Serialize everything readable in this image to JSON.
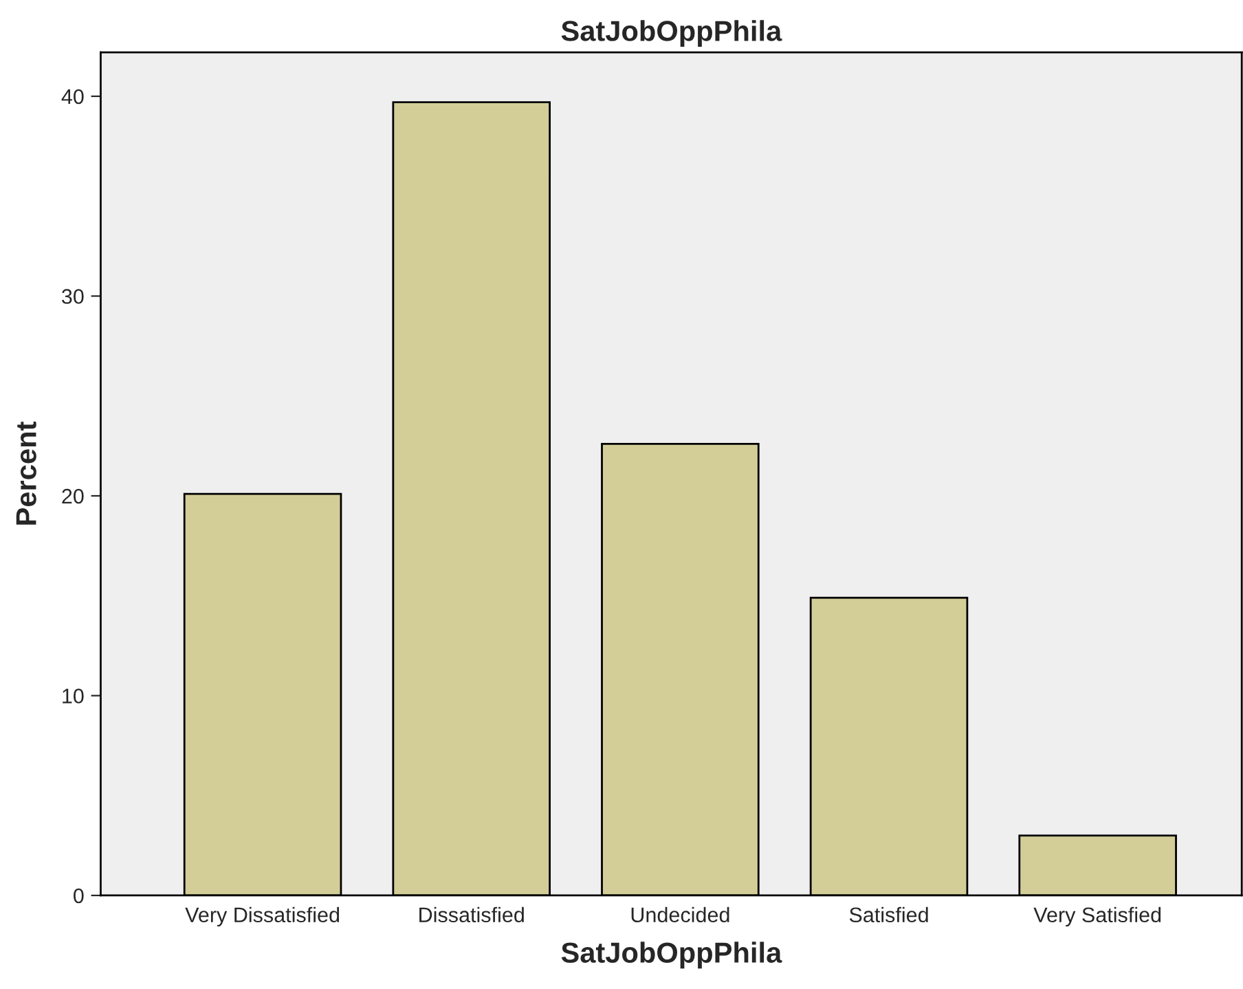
{
  "chart_data": {
    "type": "bar",
    "title": "SatJobOppPhila",
    "xlabel": "SatJobOppPhila",
    "ylabel": "Percent",
    "categories": [
      "Very Dissatisfied",
      "Dissatisfied",
      "Undecided",
      "Satisfied",
      "Very Satisfied"
    ],
    "values": [
      20.1,
      39.7,
      22.6,
      14.9,
      3.0
    ],
    "color": "#d3ce98",
    "ylim": [
      0,
      42.2
    ],
    "yticks": [
      0,
      10,
      20,
      30,
      40
    ],
    "grid": false,
    "legend": false
  }
}
